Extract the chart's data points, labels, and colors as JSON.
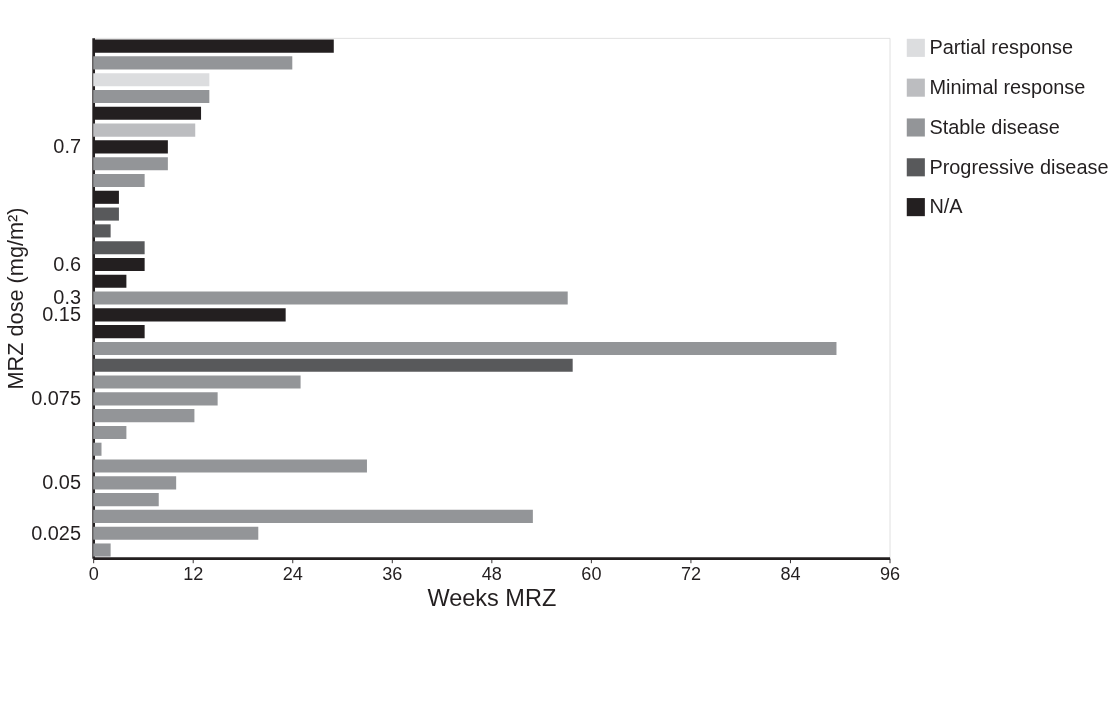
{
  "chart_data": {
    "type": "bar",
    "orientation": "horizontal",
    "xlabel": "Weeks MRZ",
    "ylabel": "MRZ dose (mg/m²)",
    "categories": [
      null,
      null,
      null,
      null,
      null,
      null,
      "0.7",
      null,
      null,
      null,
      null,
      null,
      null,
      "0.6",
      null,
      "0.3",
      "0.15",
      null,
      null,
      null,
      null,
      "0.075",
      null,
      null,
      null,
      null,
      "0.05",
      null,
      null,
      "0.025",
      null
    ],
    "series": [
      {
        "name": "Partial response",
        "color": "#dcdddf",
        "values": [
          null,
          null,
          14,
          null,
          null,
          null,
          null,
          null,
          null,
          null,
          null,
          null,
          null,
          null,
          null,
          null,
          null,
          null,
          null,
          null,
          null,
          null,
          null,
          null,
          null,
          null,
          null,
          null,
          null,
          null,
          null
        ]
      },
      {
        "name": "Minimal response",
        "color": "#bcbdc0",
        "values": [
          null,
          null,
          null,
          null,
          null,
          12.3,
          null,
          null,
          null,
          null,
          null,
          null,
          null,
          null,
          null,
          null,
          null,
          null,
          null,
          null,
          null,
          null,
          null,
          null,
          null,
          null,
          null,
          null,
          null,
          null,
          null
        ]
      },
      {
        "name": "Stable disease",
        "color": "#939598",
        "values": [
          null,
          24,
          null,
          14,
          null,
          null,
          null,
          9,
          6.2,
          null,
          null,
          null,
          null,
          null,
          null,
          57.2,
          null,
          null,
          89.6,
          null,
          25,
          15,
          12.2,
          4,
          1,
          33,
          10,
          7.9,
          53,
          19.9,
          2.1
        ]
      },
      {
        "name": "Progressive disease",
        "color": "#58595b",
        "values": [
          null,
          null,
          null,
          null,
          null,
          null,
          null,
          null,
          null,
          null,
          3.1,
          2.1,
          6.2,
          null,
          null,
          null,
          null,
          null,
          null,
          57.8,
          null,
          null,
          null,
          null,
          null,
          null,
          null,
          null,
          null,
          null,
          null
        ]
      },
      {
        "name": "N/A",
        "color": "#231f20",
        "values": [
          29,
          null,
          null,
          null,
          13,
          null,
          9,
          null,
          null,
          3.1,
          null,
          null,
          null,
          6.2,
          4,
          null,
          23.2,
          6.2,
          null,
          null,
          null,
          null,
          null,
          null,
          null,
          null,
          null,
          null,
          null,
          null,
          null
        ]
      }
    ],
    "xlim": [
      0,
      96
    ],
    "xticks": [
      0,
      12,
      24,
      36,
      48,
      60,
      72,
      84,
      96
    ],
    "grid": false,
    "legend": "top right"
  }
}
